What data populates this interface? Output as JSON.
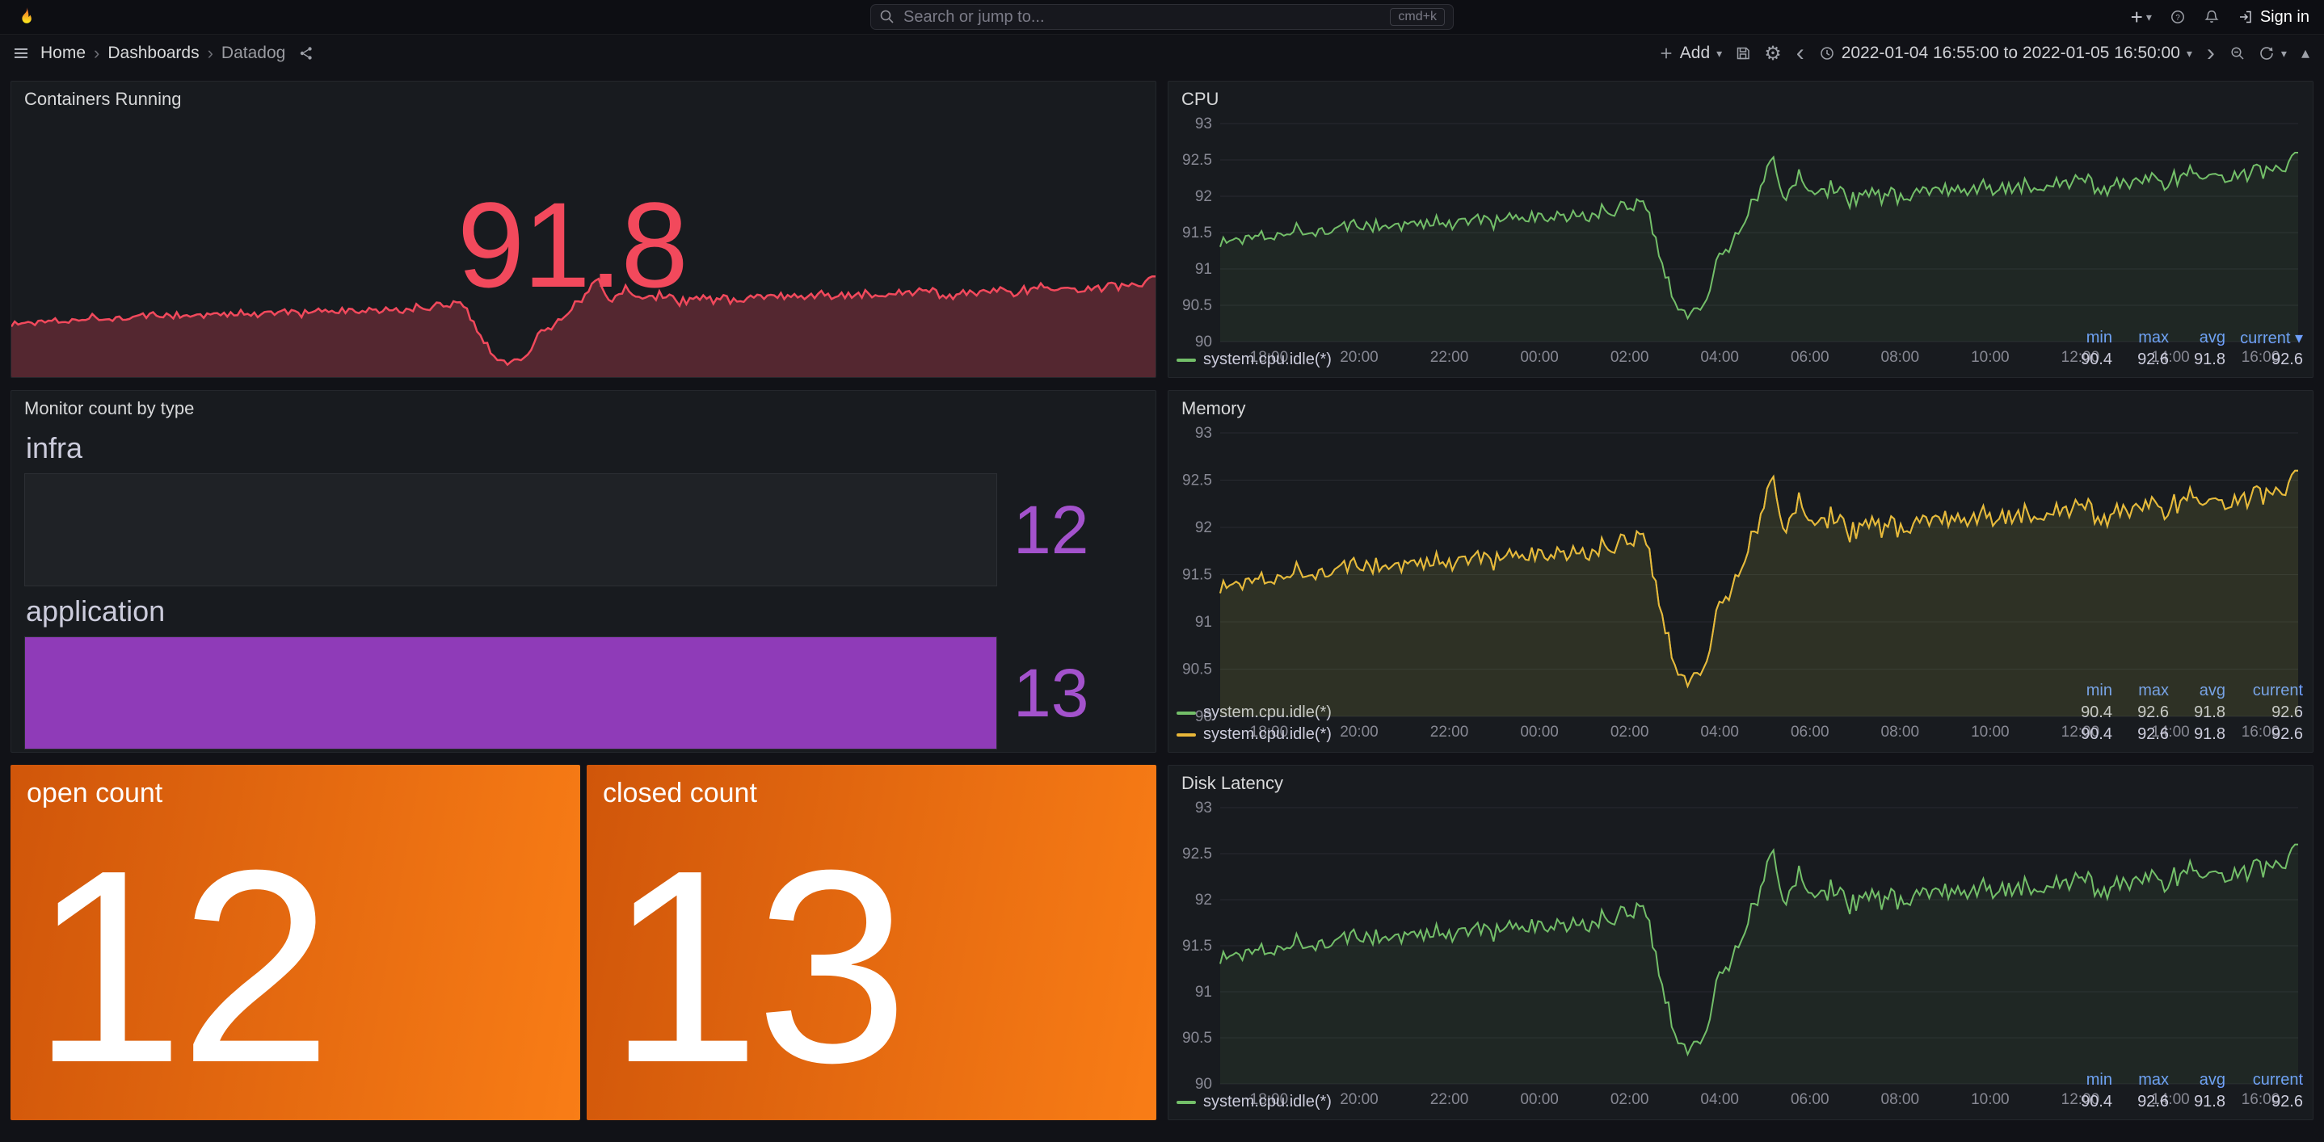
{
  "topnav": {
    "search_placeholder": "Search or jump to...",
    "shortcut_badge": "cmd+k",
    "sign_in_label": "Sign in"
  },
  "toolbar": {
    "breadcrumb": [
      "Home",
      "Dashboards",
      "Datadog"
    ],
    "add_label": "Add",
    "time_range": "2022-01-04 16:55:00 to 2022-01-05 16:50:00"
  },
  "theme": {
    "background": "#111217",
    "panel_background": "#181b1f",
    "red": "#F2495C",
    "green": "#73BF69",
    "yellow": "#EAB839",
    "purple_fill": "#8F3BB8",
    "purple_text": "#A352CC",
    "legend_header_blue": "#6E9FFF",
    "orange_grad_start": "#D0560A",
    "orange_grad_end": "#F97D16"
  },
  "panels": {
    "containers": {
      "title": "Containers Running",
      "value": "91.8"
    },
    "cpu": {
      "title": "CPU"
    },
    "memory": {
      "title": "Memory"
    },
    "disk": {
      "title": "Disk Latency"
    },
    "monitor": {
      "title": "Monitor count by type"
    },
    "open": {
      "title": "open count",
      "value": "12"
    },
    "closed": {
      "title": "closed count",
      "value": "13"
    }
  },
  "legend": {
    "headers": [
      "min",
      "max",
      "avg",
      "current"
    ]
  },
  "chart_data": {
    "x_ticks": [
      "18:00",
      "20:00",
      "22:00",
      "00:00",
      "02:00",
      "04:00",
      "06:00",
      "08:00",
      "10:00",
      "12:00",
      "14:00",
      "16:00"
    ],
    "x_start_min": 65,
    "x_step_min": 120,
    "x_total_min": 1435,
    "ylim": [
      90,
      93
    ],
    "y_ticks": [
      90,
      90.5,
      91,
      91.5,
      92,
      92.5,
      93
    ],
    "trend_points": [
      [
        0,
        91.35
      ],
      [
        60,
        91.5
      ],
      [
        150,
        91.55
      ],
      [
        240,
        91.6
      ],
      [
        330,
        91.65
      ],
      [
        420,
        91.7
      ],
      [
        480,
        91.7
      ],
      [
        540,
        91.85
      ],
      [
        565,
        92.0
      ],
      [
        585,
        91.2
      ],
      [
        605,
        90.55
      ],
      [
        625,
        90.35
      ],
      [
        645,
        90.6
      ],
      [
        665,
        91.15
      ],
      [
        690,
        91.5
      ],
      [
        715,
        92.0
      ],
      [
        735,
        92.55
      ],
      [
        750,
        91.95
      ],
      [
        770,
        92.3
      ],
      [
        790,
        92.0
      ],
      [
        815,
        92.15
      ],
      [
        840,
        91.95
      ],
      [
        870,
        92.05
      ],
      [
        900,
        92.0
      ],
      [
        940,
        92.1
      ],
      [
        980,
        92.05
      ],
      [
        1020,
        92.1
      ],
      [
        1060,
        92.15
      ],
      [
        1100,
        92.1
      ],
      [
        1140,
        92.2
      ],
      [
        1180,
        92.15
      ],
      [
        1220,
        92.25
      ],
      [
        1260,
        92.2
      ],
      [
        1300,
        92.3
      ],
      [
        1340,
        92.25
      ],
      [
        1380,
        92.35
      ],
      [
        1410,
        92.3
      ],
      [
        1435,
        92.6
      ]
    ],
    "noise_amplitude": 0.1,
    "charts": [
      {
        "id": "cpu",
        "type": "line",
        "title": "CPU",
        "sort_caret": true,
        "series": [
          {
            "name": "system.cpu.idle(*)",
            "color": "#73BF69",
            "stats": [
              "90.4",
              "92.6",
              "91.8",
              "92.6"
            ]
          }
        ]
      },
      {
        "id": "memory",
        "type": "line",
        "title": "Memory",
        "sort_caret": false,
        "series": [
          {
            "name": "system.cpu.idle(*)",
            "color": "#73BF69",
            "stats": [
              "90.4",
              "92.6",
              "91.8",
              "92.6"
            ]
          },
          {
            "name": "system.cpu.idle(*)",
            "color": "#EAB839",
            "stats": [
              "90.4",
              "92.6",
              "91.8",
              "92.6"
            ]
          }
        ]
      },
      {
        "id": "disk",
        "type": "line",
        "title": "Disk Latency",
        "sort_caret": false,
        "series": [
          {
            "name": "system.cpu.idle(*)",
            "color": "#73BF69",
            "stats": [
              "90.4",
              "92.6",
              "91.8",
              "92.6"
            ]
          }
        ]
      },
      {
        "id": "containers-spark",
        "type": "area",
        "title": "Containers Running",
        "color": "#F2495C",
        "current": "91.8"
      },
      {
        "id": "monitor-bars",
        "type": "bar-gauge",
        "title": "Monitor count by type",
        "max": 13,
        "bars": [
          {
            "label": "infra",
            "value": 12,
            "fill_fraction": 0
          },
          {
            "label": "application",
            "value": 13,
            "fill_fraction": 1
          }
        ]
      },
      {
        "id": "open-stat",
        "type": "stat",
        "title": "open count",
        "value": 12
      },
      {
        "id": "closed-stat",
        "type": "stat",
        "title": "closed count",
        "value": 13
      }
    ]
  }
}
